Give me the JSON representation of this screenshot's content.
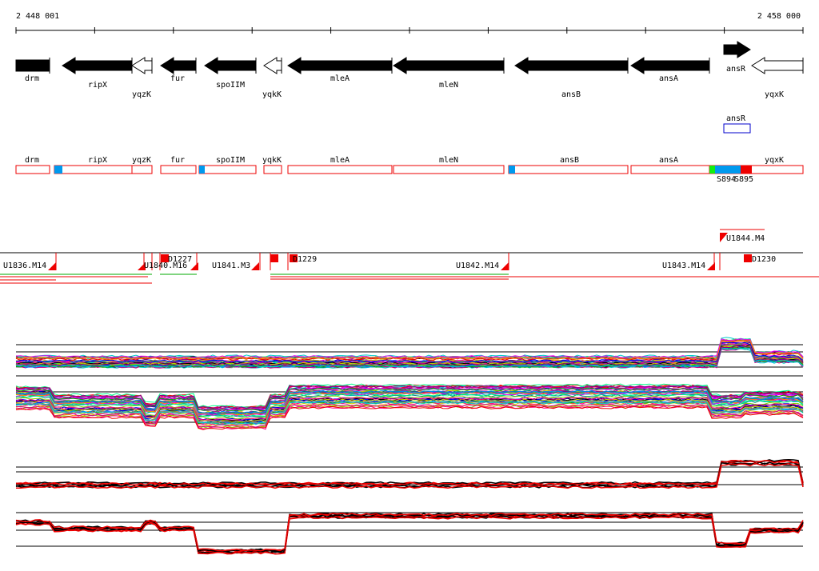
{
  "ruler": {
    "start": "2 448 001",
    "end": "2 458 000"
  },
  "genes": [
    "drm",
    "ripX",
    "yqzK",
    "fur",
    "spoIIM",
    "yqkK",
    "mleA",
    "mleN",
    "ansB",
    "ansA",
    "ansR",
    "yqxK"
  ],
  "box_track": {
    "label": "ansR"
  },
  "segments": [
    "drm",
    "ripX",
    "yqzK",
    "fur",
    "spoIIM",
    "yqkK",
    "mleA",
    "mleN",
    "ansB",
    "ansA",
    "yqxK"
  ],
  "sites": [
    "S894",
    "S895"
  ],
  "units": [
    "U1836.M14",
    "U1840.M16",
    "D1227",
    "U1841.M3",
    "D1229",
    "U1842.M14",
    "U1843.M14",
    "D1230",
    "U1844.M4"
  ]
}
